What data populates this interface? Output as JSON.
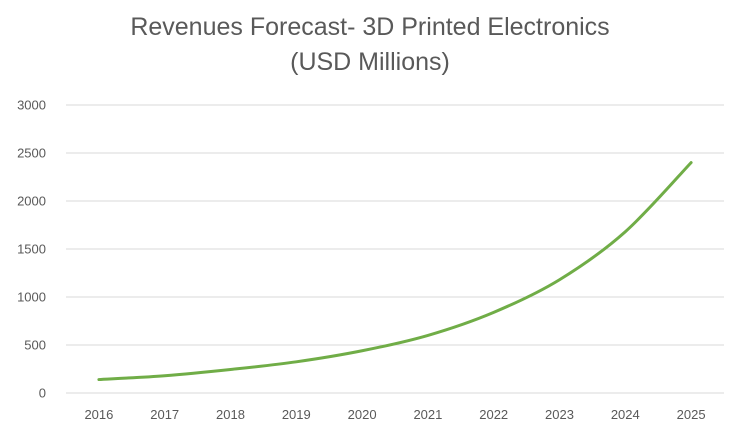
{
  "chart_data": {
    "type": "line",
    "title_line1": "Revenues Forecast- 3D Printed Electronics",
    "title_line2": "(USD Millions)",
    "xlabel": "",
    "ylabel": "",
    "categories": [
      "2016",
      "2017",
      "2018",
      "2019",
      "2020",
      "2021",
      "2022",
      "2023",
      "2024",
      "2025"
    ],
    "series": [
      {
        "name": "Revenues",
        "color": "#70AD47",
        "values": [
          140,
          180,
          245,
          325,
          440,
          600,
          840,
          1180,
          1680,
          2400
        ]
      }
    ],
    "ylim": [
      0,
      3000
    ],
    "yticks": [
      "0",
      "500",
      "1000",
      "1500",
      "2000",
      "2500",
      "3000"
    ],
    "ytick_values": [
      0,
      500,
      1000,
      1500,
      2000,
      2500,
      3000
    ],
    "grid": true,
    "gridline_color": "#D9D9D9",
    "legend": "none"
  }
}
